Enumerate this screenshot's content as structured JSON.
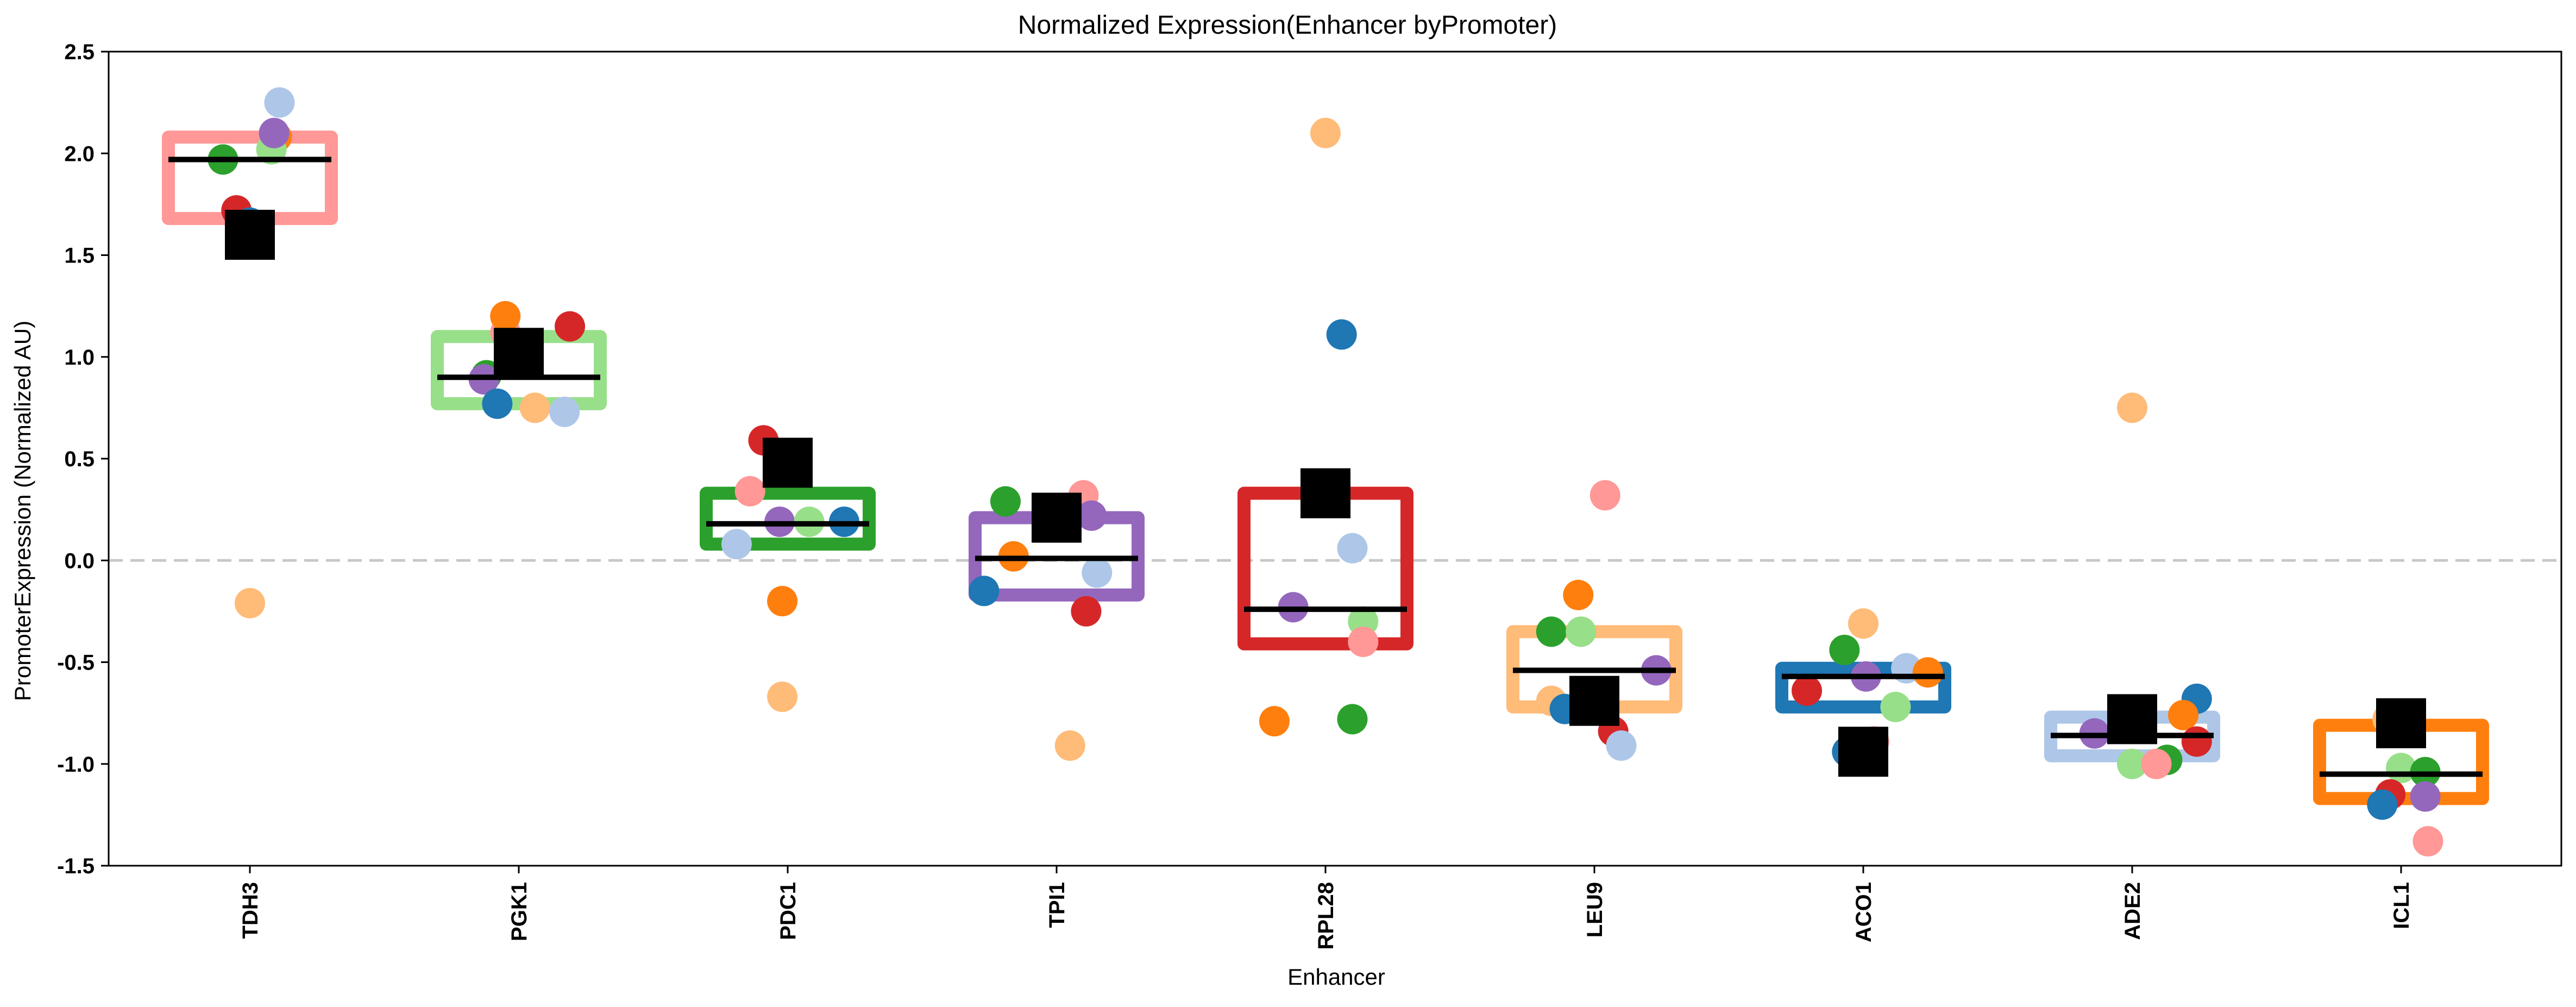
{
  "chart_data": {
    "type": "scatter",
    "title": "Normalized Expression(Enhancer byPromoter)",
    "xlabel": "Enhancer",
    "ylabel": "PromoterExpression (Normalized AU)",
    "ylim": [
      -1.5,
      2.5
    ],
    "yticks": [
      "2.5",
      "2.0",
      "1.5",
      "1.0",
      "0.5",
      "0.0",
      "-0.5",
      "-1.0",
      "-1.5"
    ],
    "ytick_values": [
      2.5,
      2.0,
      1.5,
      1.0,
      0.5,
      0.0,
      -0.5,
      -1.0,
      -1.5
    ],
    "categories": [
      "TDH3",
      "PGK1",
      "PDC1",
      "TPI1",
      "RPL28",
      "LEU9",
      "ACO1",
      "ADE2",
      "ICL1"
    ],
    "reference_line": {
      "y": 0.0,
      "style": "dashed",
      "color": "#c8c8c8"
    },
    "grid": false,
    "legend": "none",
    "box_colors": [
      "#ff9896",
      "#98df8a",
      "#2ca02c",
      "#9467bd",
      "#d62728",
      "#ffbb78",
      "#1f77b4",
      "#aec7e8",
      "#ff7f0e"
    ],
    "boxes": [
      {
        "category": "TDH3",
        "low": 1.68,
        "high": 2.08,
        "median": 1.97
      },
      {
        "category": "PGK1",
        "low": 0.77,
        "high": 1.1,
        "median": 0.9
      },
      {
        "category": "PDC1",
        "low": 0.08,
        "high": 0.33,
        "median": 0.18
      },
      {
        "category": "TPI1",
        "low": -0.17,
        "high": 0.21,
        "median": 0.01
      },
      {
        "category": "RPL28",
        "low": -0.41,
        "high": 0.33,
        "median": -0.24
      },
      {
        "category": "LEU9",
        "low": -0.72,
        "high": -0.35,
        "median": -0.54
      },
      {
        "category": "ACO1",
        "low": -0.72,
        "high": -0.53,
        "median": -0.57
      },
      {
        "category": "ADE2",
        "low": -0.96,
        "high": -0.77,
        "median": -0.86
      },
      {
        "category": "ICL1",
        "low": -1.17,
        "high": -0.81,
        "median": -1.05
      }
    ],
    "means": [
      1.6,
      1.02,
      0.48,
      0.21,
      0.33,
      -0.69,
      -0.94,
      -0.78,
      -0.8
    ],
    "points": [
      {
        "category": "TDH3",
        "offset": -0.05,
        "y": 1.72,
        "color": "#d62728"
      },
      {
        "category": "TDH3",
        "offset": -0.03,
        "y": 1.63,
        "color": "#ff9896"
      },
      {
        "category": "TDH3",
        "offset": -0.1,
        "y": 1.97,
        "color": "#2ca02c"
      },
      {
        "category": "TDH3",
        "offset": 0.0,
        "y": 1.66,
        "color": "#1f77b4"
      },
      {
        "category": "TDH3",
        "offset": 0.1,
        "y": 2.08,
        "color": "#ff7f0e"
      },
      {
        "category": "TDH3",
        "offset": 0.08,
        "y": 2.02,
        "color": "#98df8a"
      },
      {
        "category": "TDH3",
        "offset": 0.09,
        "y": 2.1,
        "color": "#9467bd"
      },
      {
        "category": "TDH3",
        "offset": 0.11,
        "y": 2.25,
        "color": "#aec7e8"
      },
      {
        "category": "TDH3",
        "offset": 0.0,
        "y": -0.21,
        "color": "#ffbb78"
      },
      {
        "category": "PGK1",
        "offset": -0.12,
        "y": 0.91,
        "color": "#2ca02c"
      },
      {
        "category": "PGK1",
        "offset": -0.13,
        "y": 0.89,
        "color": "#9467bd"
      },
      {
        "category": "PGK1",
        "offset": -0.08,
        "y": 0.77,
        "color": "#1f77b4"
      },
      {
        "category": "PGK1",
        "offset": -0.05,
        "y": 1.12,
        "color": "#ff9896"
      },
      {
        "category": "PGK1",
        "offset": -0.05,
        "y": 1.2,
        "color": "#ff7f0e"
      },
      {
        "category": "PGK1",
        "offset": -0.03,
        "y": 1.05,
        "color": "#98df8a"
      },
      {
        "category": "PGK1",
        "offset": 0.06,
        "y": 0.75,
        "color": "#ffbb78"
      },
      {
        "category": "PGK1",
        "offset": 0.17,
        "y": 0.73,
        "color": "#aec7e8"
      },
      {
        "category": "PGK1",
        "offset": 0.19,
        "y": 1.15,
        "color": "#d62728"
      },
      {
        "category": "PDC1",
        "offset": -0.19,
        "y": 0.08,
        "color": "#aec7e8"
      },
      {
        "category": "PDC1",
        "offset": -0.14,
        "y": 0.34,
        "color": "#ff9896"
      },
      {
        "category": "PDC1",
        "offset": -0.09,
        "y": 0.59,
        "color": "#d62728"
      },
      {
        "category": "PDC1",
        "offset": -0.03,
        "y": 0.19,
        "color": "#9467bd"
      },
      {
        "category": "PDC1",
        "offset": 0.08,
        "y": 0.19,
        "color": "#98df8a"
      },
      {
        "category": "PDC1",
        "offset": 0.21,
        "y": 0.19,
        "color": "#1f77b4"
      },
      {
        "category": "PDC1",
        "offset": -0.02,
        "y": -0.2,
        "color": "#ff7f0e"
      },
      {
        "category": "PDC1",
        "offset": -0.02,
        "y": -0.67,
        "color": "#ffbb78"
      },
      {
        "category": "TPI1",
        "offset": -0.19,
        "y": 0.29,
        "color": "#2ca02c"
      },
      {
        "category": "TPI1",
        "offset": -0.16,
        "y": 0.02,
        "color": "#ff7f0e"
      },
      {
        "category": "TPI1",
        "offset": -0.27,
        "y": -0.15,
        "color": "#1f77b4"
      },
      {
        "category": "TPI1",
        "offset": 0.1,
        "y": 0.32,
        "color": "#ff9896"
      },
      {
        "category": "TPI1",
        "offset": 0.13,
        "y": 0.22,
        "color": "#9467bd"
      },
      {
        "category": "TPI1",
        "offset": 0.15,
        "y": -0.06,
        "color": "#aec7e8"
      },
      {
        "category": "TPI1",
        "offset": 0.11,
        "y": -0.25,
        "color": "#d62728"
      },
      {
        "category": "TPI1",
        "offset": 0.05,
        "y": -0.91,
        "color": "#ffbb78"
      },
      {
        "category": "RPL28",
        "offset": 0.0,
        "y": 2.1,
        "color": "#ffbb78"
      },
      {
        "category": "RPL28",
        "offset": 0.06,
        "y": 1.11,
        "color": "#1f77b4"
      },
      {
        "category": "RPL28",
        "offset": 0.1,
        "y": 0.06,
        "color": "#aec7e8"
      },
      {
        "category": "RPL28",
        "offset": -0.12,
        "y": -0.23,
        "color": "#9467bd"
      },
      {
        "category": "RPL28",
        "offset": 0.14,
        "y": -0.3,
        "color": "#98df8a"
      },
      {
        "category": "RPL28",
        "offset": 0.14,
        "y": -0.4,
        "color": "#ff9896"
      },
      {
        "category": "RPL28",
        "offset": -0.19,
        "y": -0.79,
        "color": "#ff7f0e"
      },
      {
        "category": "RPL28",
        "offset": 0.1,
        "y": -0.78,
        "color": "#2ca02c"
      },
      {
        "category": "LEU9",
        "offset": 0.04,
        "y": 0.32,
        "color": "#ff9896"
      },
      {
        "category": "LEU9",
        "offset": -0.06,
        "y": -0.17,
        "color": "#ff7f0e"
      },
      {
        "category": "LEU9",
        "offset": -0.16,
        "y": -0.35,
        "color": "#2ca02c"
      },
      {
        "category": "LEU9",
        "offset": -0.05,
        "y": -0.35,
        "color": "#98df8a"
      },
      {
        "category": "LEU9",
        "offset": 0.23,
        "y": -0.54,
        "color": "#9467bd"
      },
      {
        "category": "LEU9",
        "offset": -0.16,
        "y": -0.69,
        "color": "#ffbb78"
      },
      {
        "category": "LEU9",
        "offset": -0.11,
        "y": -0.73,
        "color": "#1f77b4"
      },
      {
        "category": "LEU9",
        "offset": 0.07,
        "y": -0.84,
        "color": "#d62728"
      },
      {
        "category": "LEU9",
        "offset": 0.1,
        "y": -0.91,
        "color": "#aec7e8"
      },
      {
        "category": "ACO1",
        "offset": 0.0,
        "y": -0.31,
        "color": "#ffbb78"
      },
      {
        "category": "ACO1",
        "offset": -0.07,
        "y": -0.44,
        "color": "#2ca02c"
      },
      {
        "category": "ACO1",
        "offset": 0.16,
        "y": -0.53,
        "color": "#aec7e8"
      },
      {
        "category": "ACO1",
        "offset": 0.24,
        "y": -0.55,
        "color": "#ff7f0e"
      },
      {
        "category": "ACO1",
        "offset": 0.01,
        "y": -0.57,
        "color": "#9467bd"
      },
      {
        "category": "ACO1",
        "offset": -0.21,
        "y": -0.64,
        "color": "#d62728"
      },
      {
        "category": "ACO1",
        "offset": 0.12,
        "y": -0.72,
        "color": "#98df8a"
      },
      {
        "category": "ACO1",
        "offset": 0.04,
        "y": -0.89,
        "color": "#ff9896"
      },
      {
        "category": "ACO1",
        "offset": -0.06,
        "y": -0.94,
        "color": "#1f77b4"
      },
      {
        "category": "ADE2",
        "offset": 0.0,
        "y": 0.75,
        "color": "#ffbb78"
      },
      {
        "category": "ADE2",
        "offset": 0.24,
        "y": -0.68,
        "color": "#1f77b4"
      },
      {
        "category": "ADE2",
        "offset": 0.19,
        "y": -0.76,
        "color": "#ff7f0e"
      },
      {
        "category": "ADE2",
        "offset": -0.14,
        "y": -0.85,
        "color": "#9467bd"
      },
      {
        "category": "ADE2",
        "offset": 0.24,
        "y": -0.89,
        "color": "#d62728"
      },
      {
        "category": "ADE2",
        "offset": 0.13,
        "y": -0.98,
        "color": "#2ca02c"
      },
      {
        "category": "ADE2",
        "offset": 0.0,
        "y": -1.0,
        "color": "#98df8a"
      },
      {
        "category": "ADE2",
        "offset": 0.09,
        "y": -1.0,
        "color": "#ff9896"
      },
      {
        "category": "ICL1",
        "offset": -0.05,
        "y": -0.78,
        "color": "#ffbb78"
      },
      {
        "category": "ICL1",
        "offset": -0.02,
        "y": -0.81,
        "color": "#aec7e8"
      },
      {
        "category": "ICL1",
        "offset": 0.0,
        "y": -1.02,
        "color": "#98df8a"
      },
      {
        "category": "ICL1",
        "offset": 0.09,
        "y": -1.04,
        "color": "#2ca02c"
      },
      {
        "category": "ICL1",
        "offset": -0.04,
        "y": -1.15,
        "color": "#d62728"
      },
      {
        "category": "ICL1",
        "offset": 0.09,
        "y": -1.16,
        "color": "#9467bd"
      },
      {
        "category": "ICL1",
        "offset": -0.07,
        "y": -1.2,
        "color": "#1f77b4"
      },
      {
        "category": "ICL1",
        "offset": 0.1,
        "y": -1.38,
        "color": "#ff9896"
      },
      {
        "category": "ICL1",
        "offset": -0.03,
        "y": -0.81,
        "color": "#ff7f0e"
      }
    ]
  }
}
